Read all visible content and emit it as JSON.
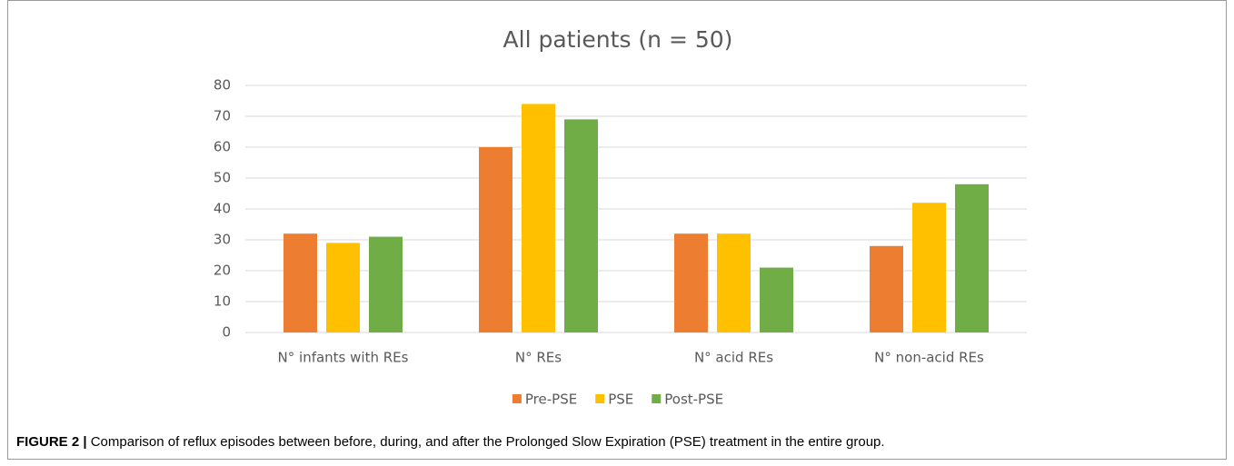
{
  "chart_data": {
    "type": "bar",
    "title": "All patients (n = 50)",
    "categories": [
      "N° infants with REs",
      "N° REs",
      "N° acid REs",
      "N° non-acid REs"
    ],
    "series": [
      {
        "name": "Pre-PSE",
        "color": "#ed7d31",
        "values": [
          32,
          60,
          32,
          28
        ]
      },
      {
        "name": "PSE",
        "color": "#ffc000",
        "values": [
          29,
          74,
          32,
          42
        ]
      },
      {
        "name": "Post-PSE",
        "color": "#70ad47",
        "values": [
          31,
          69,
          21,
          48
        ]
      }
    ],
    "ylim": [
      0,
      80
    ],
    "yticks": [
      0,
      10,
      20,
      30,
      40,
      50,
      60,
      70,
      80
    ],
    "grid": true,
    "legend": "bottom"
  },
  "caption": {
    "label": "FIGURE 2 |",
    "text": "Comparison of reflux episodes between before, during, and after the Prolonged Slow Expiration (PSE) treatment in the entire group."
  }
}
